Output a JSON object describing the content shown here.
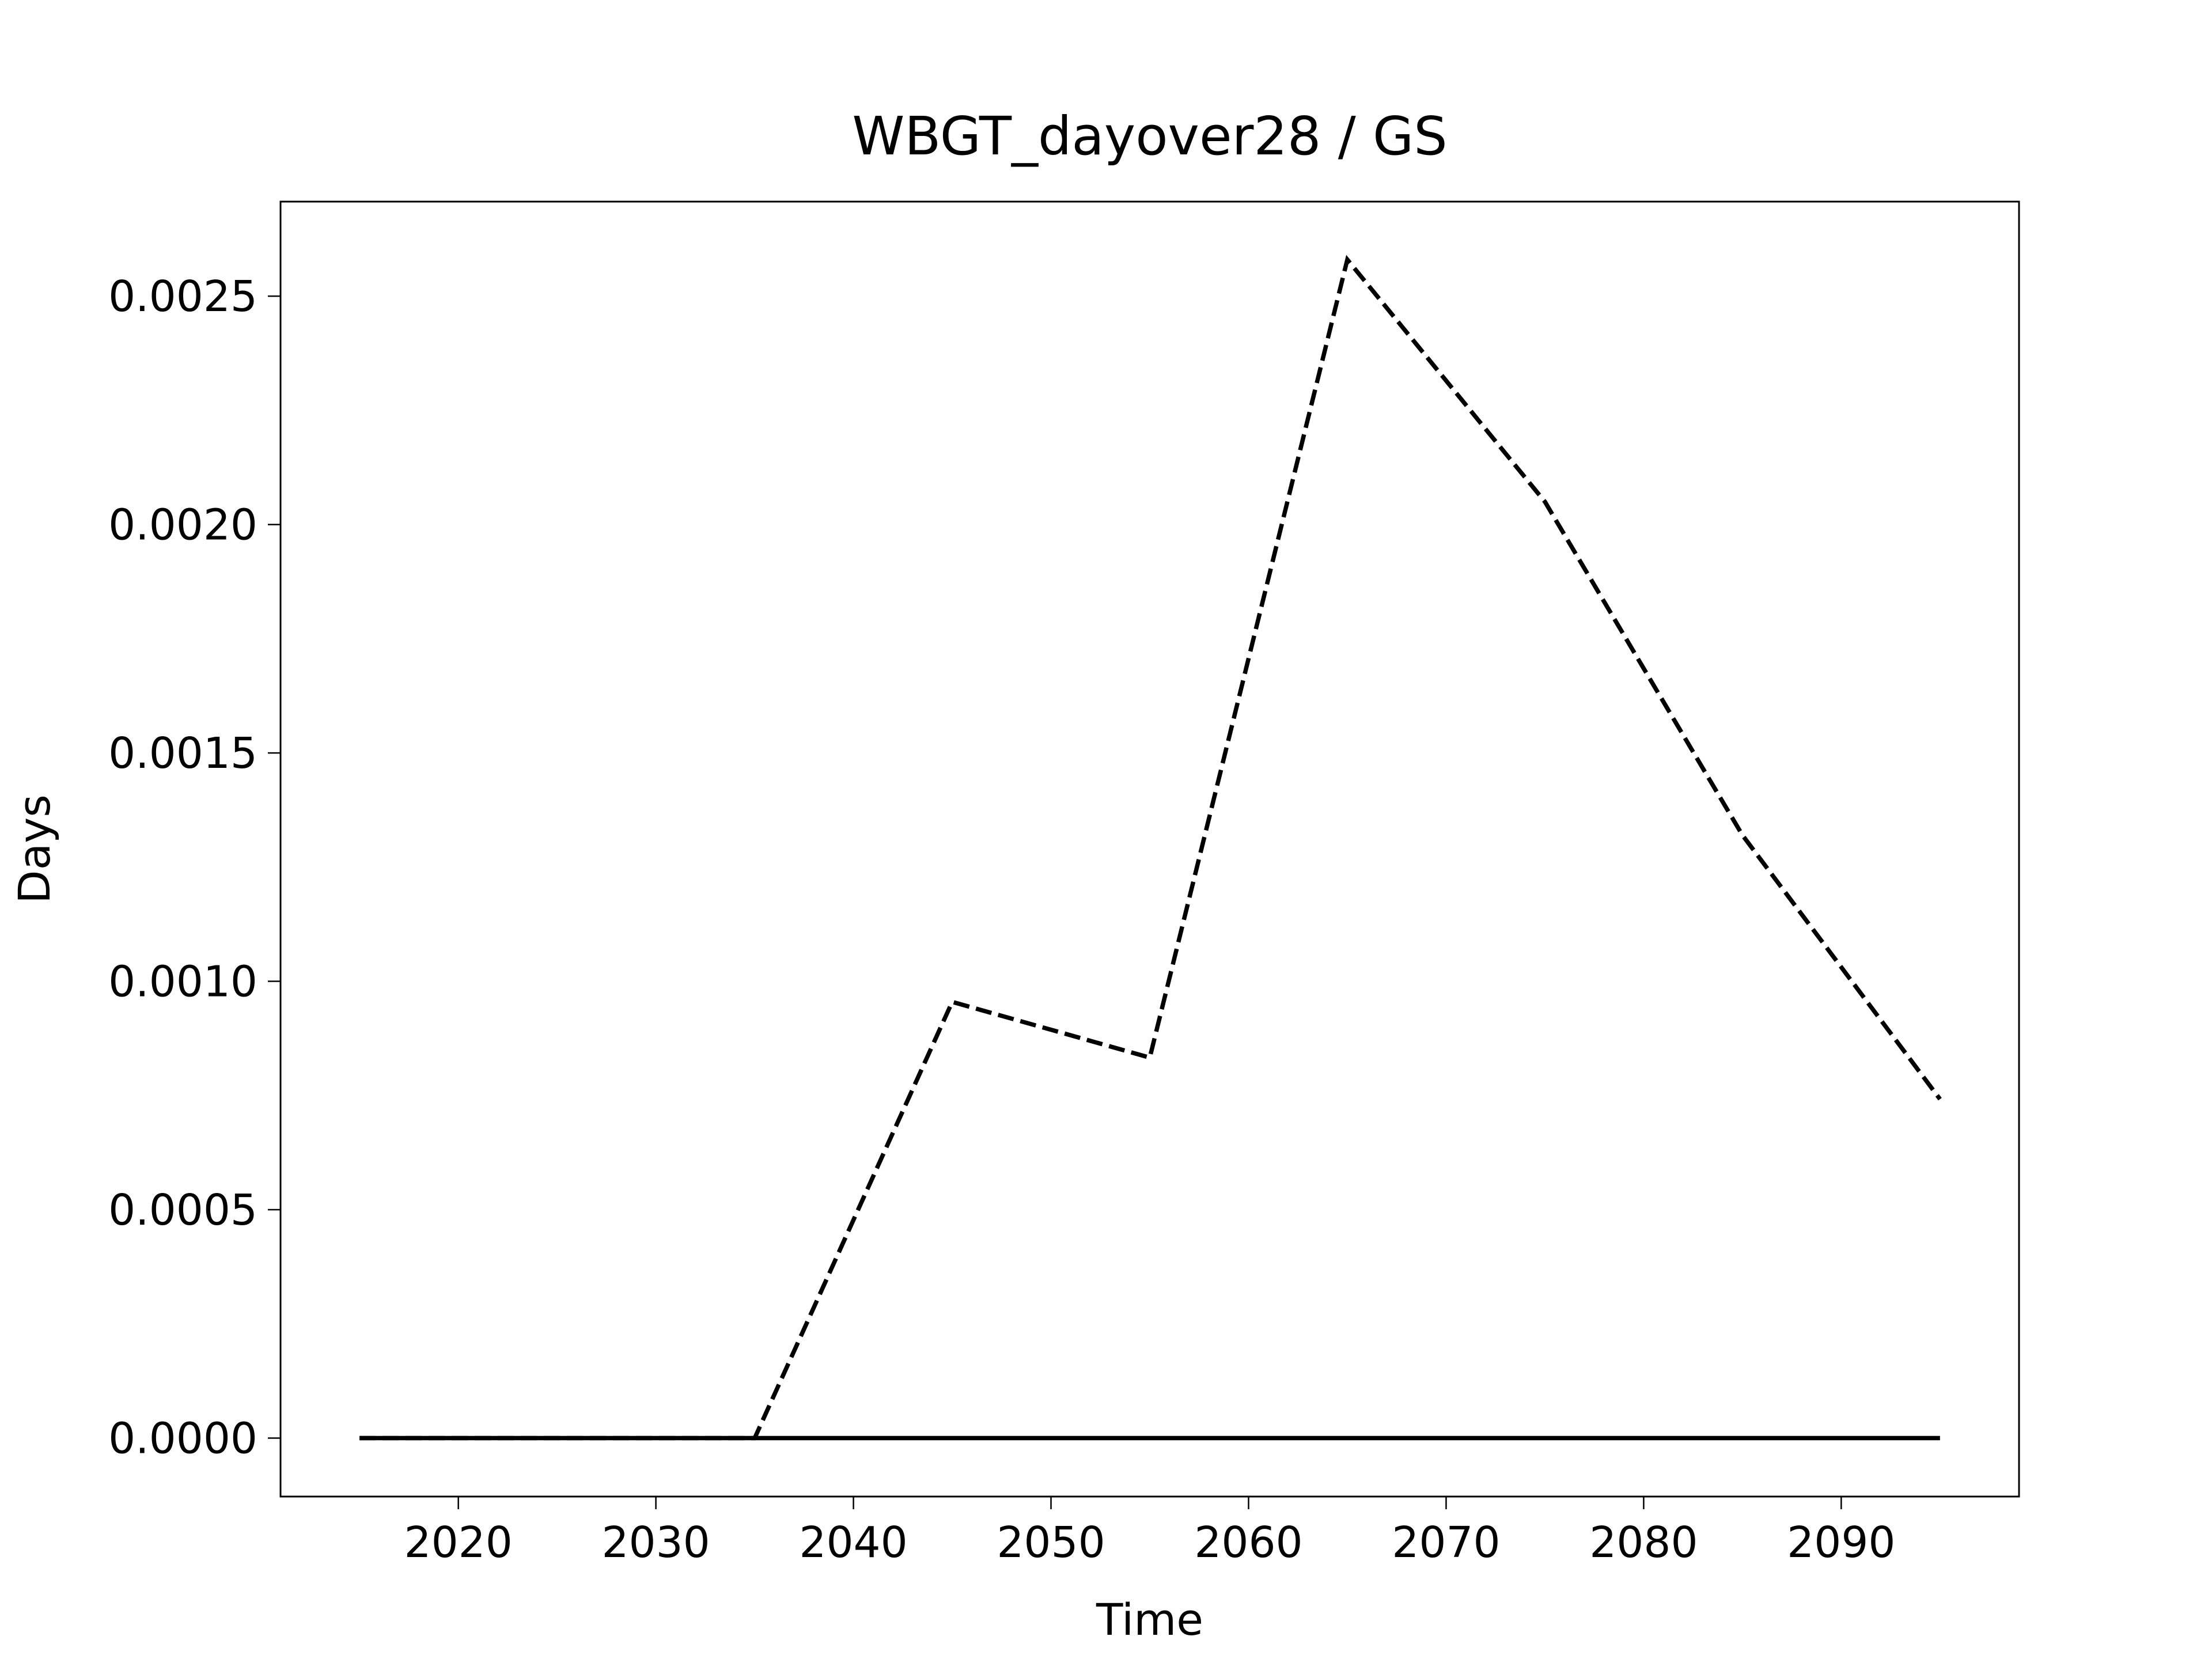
{
  "chart_data": {
    "type": "line",
    "title": "WBGT_dayover28 / GS",
    "xlabel": "Time",
    "ylabel": "Days",
    "x": [
      2015,
      2025,
      2035,
      2045,
      2055,
      2065,
      2075,
      2085,
      2095
    ],
    "series": [
      {
        "color": "#000000",
        "linestyle": "dashed",
        "values": [
          0,
          0,
          0,
          0.000955,
          0.000833,
          0.00258,
          0.00205,
          0.00132,
          0.000742
        ]
      },
      {
        "color": "#000000",
        "linestyle": "solid",
        "values": [
          0,
          0,
          0,
          0,
          0,
          0,
          0,
          0,
          0
        ]
      }
    ],
    "xlim": [
      2011,
      2099
    ],
    "xticks": [
      2020,
      2030,
      2040,
      2050,
      2060,
      2070,
      2080,
      2090
    ],
    "ylim": [
      -0.000128,
      0.002707
    ],
    "yticks": [
      {
        "value": 0,
        "label": "0.0000"
      },
      {
        "value": 0.0005,
        "label": "0.0005"
      },
      {
        "value": 0.001,
        "label": "0.0010"
      },
      {
        "value": 0.0015,
        "label": "0.0015"
      },
      {
        "value": 0.002,
        "label": "0.0020"
      },
      {
        "value": 0.0025,
        "label": "0.0025"
      }
    ],
    "grid": false
  }
}
